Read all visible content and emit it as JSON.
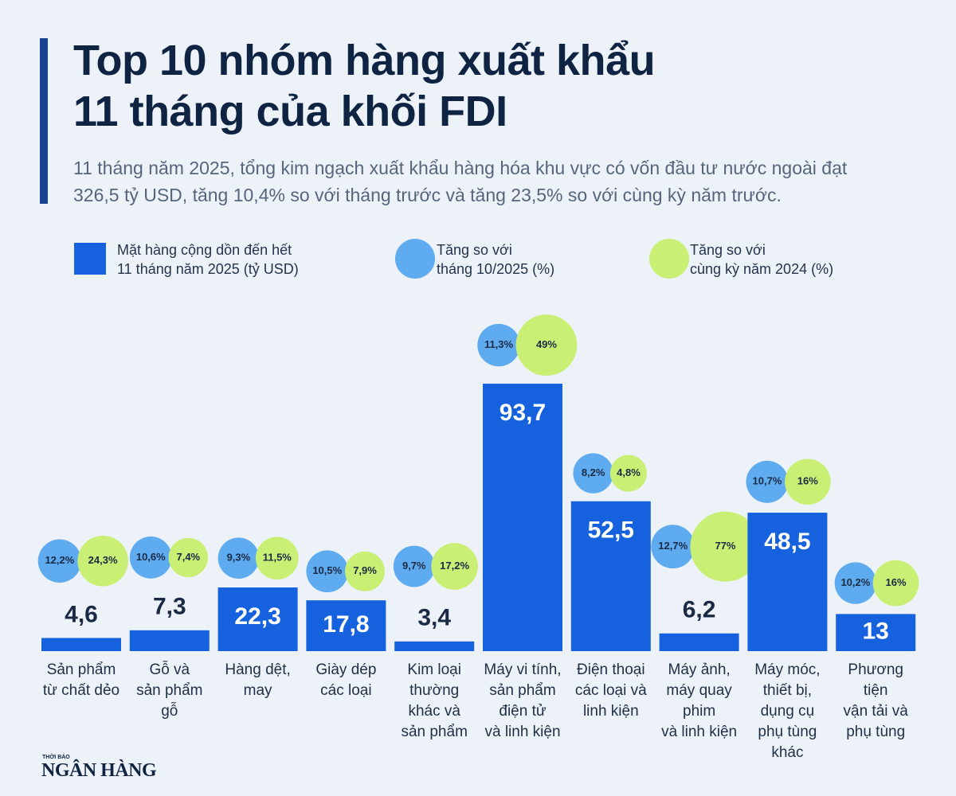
{
  "chart_data": {
    "type": "bar",
    "title": "Top 10 nhóm hàng xuất khẩu\n11 tháng của khối FDI",
    "subtitle": "11 tháng năm 2025, tổng kim ngạch xuất khẩu hàng hóa khu vực có vốn đầu tư nước ngoài đạt 326,5 tỷ USD, tăng 10,4% so với tháng trước và tăng 23,5% so với cùng kỳ năm trước.",
    "categories": [
      "Sản phẩm\ntừ chất dẻo",
      "Gỗ và\nsản phẩm\ngỗ",
      "Hàng dệt,\nmay",
      "Giày dép\ncác loại",
      "Kim loại\nthường\nkhác và\nsản phẩm",
      "Máy vi tính,\nsản phẩm\nđiện tử\nvà linh kiện",
      "Điện thoại\ncác loại và\nlinh kiện",
      "Máy ảnh,\nmáy quay\nphim\nvà linh kiện",
      "Máy móc,\nthiết bị,\ndụng cụ\nphụ tùng\nkhác",
      "Phương\ntiện\nvận tải và\nphụ tùng"
    ],
    "series": [
      {
        "name": "Mặt hàng cộng dồn đến hết\n11 tháng năm 2025 (tỷ USD)",
        "color": "#1662de",
        "values": [
          4.6,
          7.3,
          22.3,
          17.8,
          3.4,
          93.7,
          52.5,
          6.2,
          48.5,
          13
        ],
        "value_labels": [
          "4,6",
          "7,3",
          "22,3",
          "17,8",
          "3,4",
          "93,7",
          "52,5",
          "6,2",
          "48,5",
          "13"
        ]
      },
      {
        "name": "Tăng so với\ntháng 10/2025 (%)",
        "color": "#5fabef",
        "values": [
          12.2,
          10.6,
          9.3,
          10.5,
          9.7,
          11.3,
          8.2,
          12.7,
          10.7,
          10.2
        ],
        "value_labels": [
          "12,2%",
          "10,6%",
          "9,3%",
          "10,5%",
          "9,7%",
          "11,3%",
          "8,2%",
          "12,7%",
          "10,7%",
          "10,2%"
        ]
      },
      {
        "name": "Tăng so với\ncùng kỳ năm 2024 (%)",
        "color": "#c9ef74",
        "values": [
          24.3,
          7.4,
          11.5,
          7.9,
          17.2,
          49,
          4.8,
          77,
          16,
          16
        ],
        "value_labels": [
          "24,3%",
          "7,4%",
          "11,5%",
          "7,9%",
          "17,2%",
          "49%",
          "4,8%",
          "77%",
          "16%",
          "16%"
        ]
      }
    ]
  },
  "logo": {
    "small": "THỜI BÁO",
    "name": "NGÂN HÀNG"
  }
}
